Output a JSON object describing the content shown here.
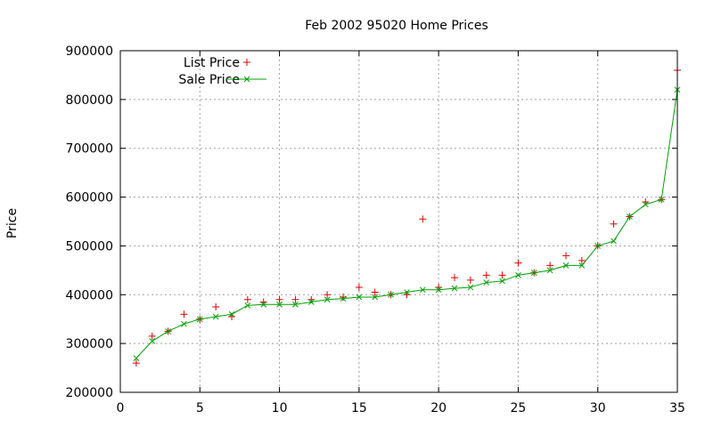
{
  "chart_data": {
    "type": "line",
    "title": "Feb 2002 95020 Home Prices",
    "xlabel": "",
    "ylabel": "Price",
    "xlim": [
      0,
      35
    ],
    "ylim": [
      200000,
      900000
    ],
    "x_ticks": [
      "0",
      "5",
      "10",
      "15",
      "20",
      "25",
      "30",
      "35"
    ],
    "y_ticks": [
      "200000",
      "300000",
      "400000",
      "500000",
      "600000",
      "700000",
      "800000",
      "900000"
    ],
    "grid": true,
    "legend_position": "top-left",
    "series": [
      {
        "name": "List Price",
        "style": "points",
        "marker": "+",
        "color": "#e00000",
        "x": [
          1,
          2,
          3,
          4,
          5,
          6,
          7,
          8,
          9,
          10,
          11,
          12,
          13,
          14,
          15,
          16,
          17,
          18,
          19,
          20,
          21,
          22,
          23,
          24,
          25,
          26,
          27,
          28,
          29,
          30,
          31,
          32,
          33,
          34,
          35
        ],
        "values": [
          260000,
          315000,
          325000,
          360000,
          350000,
          375000,
          355000,
          390000,
          385000,
          390000,
          390000,
          390000,
          400000,
          395000,
          415000,
          405000,
          400000,
          400000,
          555000,
          415000,
          435000,
          430000,
          440000,
          440000,
          465000,
          445000,
          460000,
          480000,
          470000,
          500000,
          545000,
          560000,
          590000,
          595000,
          860000
        ]
      },
      {
        "name": "Sale Price",
        "style": "linespoints",
        "marker": "x",
        "color": "#00a000",
        "x": [
          1,
          2,
          3,
          4,
          5,
          6,
          7,
          8,
          9,
          10,
          11,
          12,
          13,
          14,
          15,
          16,
          17,
          18,
          19,
          20,
          21,
          22,
          23,
          24,
          25,
          26,
          27,
          28,
          29,
          30,
          31,
          32,
          33,
          34,
          35
        ],
        "values": [
          270000,
          305000,
          325000,
          340000,
          350000,
          355000,
          360000,
          378000,
          380000,
          380000,
          380000,
          385000,
          390000,
          392000,
          395000,
          395000,
          400000,
          405000,
          410000,
          410000,
          413000,
          415000,
          425000,
          428000,
          440000,
          445000,
          450000,
          460000,
          460000,
          500000,
          510000,
          560000,
          585000,
          595000,
          820000
        ]
      }
    ]
  }
}
